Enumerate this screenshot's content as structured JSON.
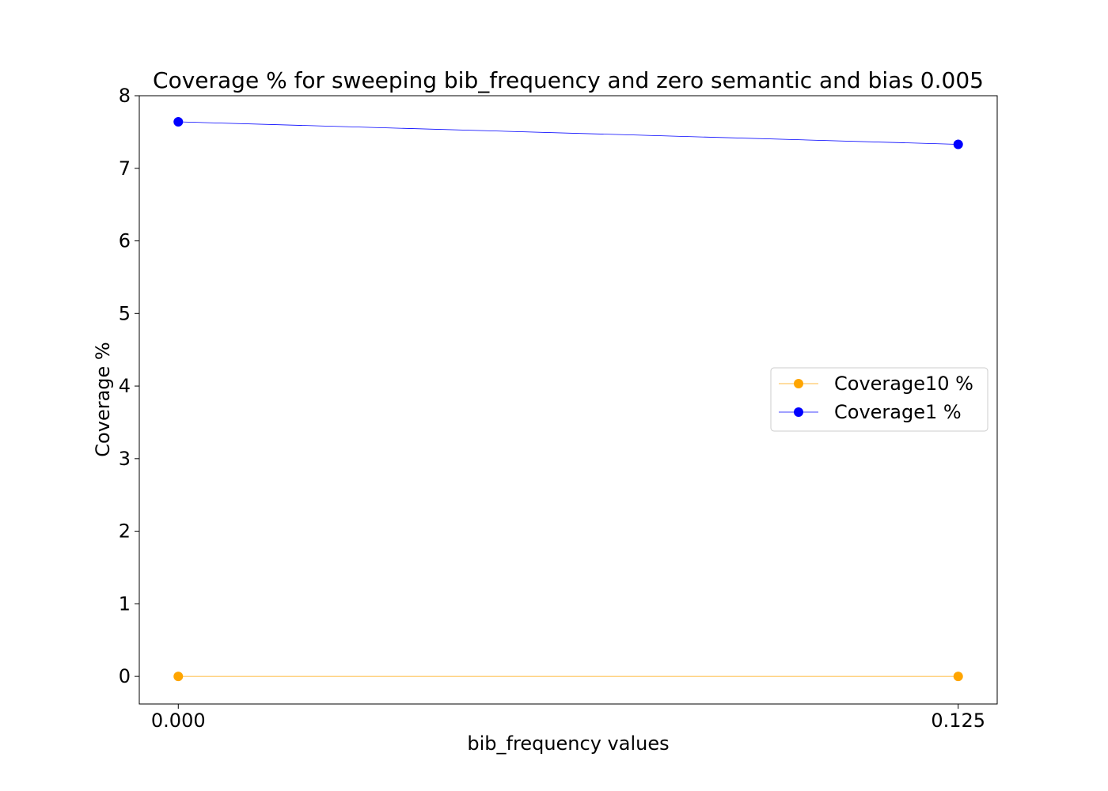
{
  "chart_data": {
    "type": "line",
    "title": "Coverage % for sweeping bib_frequency and zero semantic and bias 0.005",
    "xlabel": "bib_frequency values",
    "ylabel": "Coverage %",
    "x": [
      0.0,
      0.125
    ],
    "x_tick_labels": [
      "0.000",
      "0.125"
    ],
    "xlim": [
      -0.00625,
      0.13125
    ],
    "ylim": [
      -0.38,
      8.0
    ],
    "y_ticks": [
      0,
      1,
      2,
      3,
      4,
      5,
      6,
      7,
      8
    ],
    "grid": false,
    "legend_position": "center-right",
    "series": [
      {
        "name": "Coverage10 %",
        "values": [
          0.0,
          0.0
        ],
        "color": "#ffa500"
      },
      {
        "name": "Coverage1 %",
        "values": [
          7.64,
          7.33
        ],
        "color": "#0000ff"
      }
    ]
  }
}
